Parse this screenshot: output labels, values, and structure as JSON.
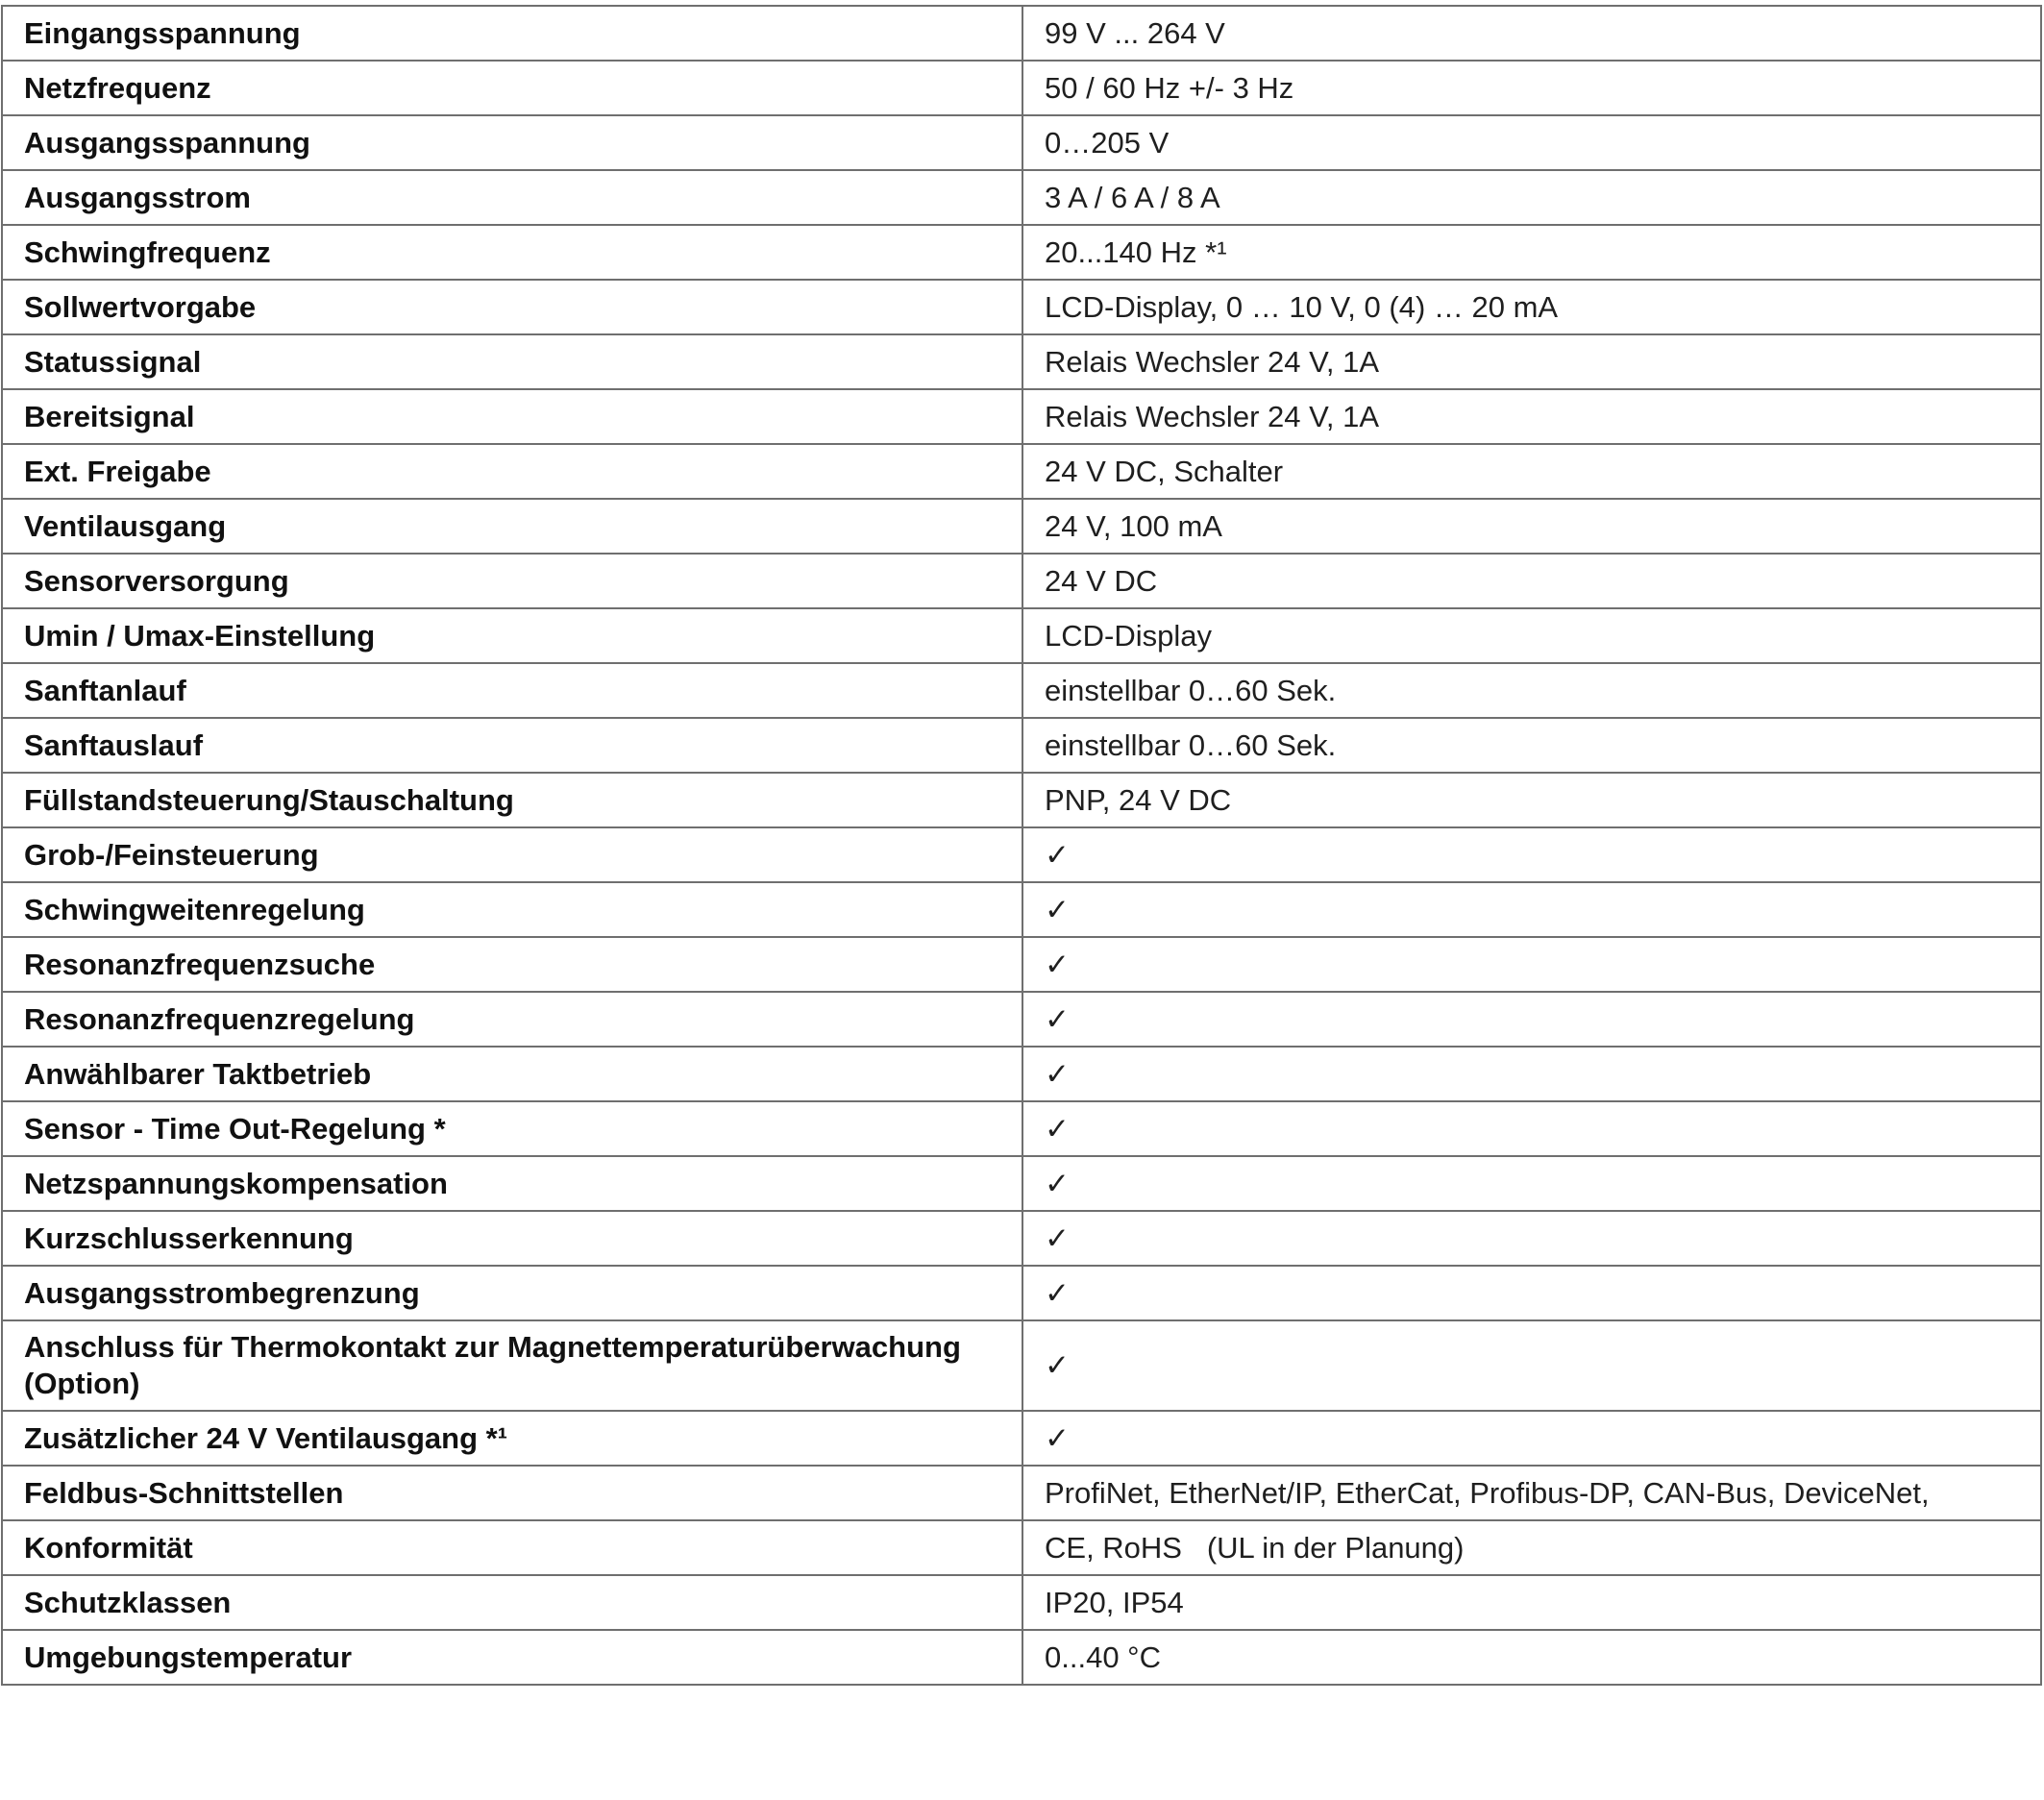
{
  "rows": [
    {
      "label": "Eingangsspannung",
      "value": "99 V ... 264 V"
    },
    {
      "label": "Netzfrequenz",
      "value": "50 / 60 Hz +/- 3 Hz"
    },
    {
      "label": "Ausgangsspannung",
      "value": "0…205 V"
    },
    {
      "label": "Ausgangsstrom",
      "value": "3 A / 6 A / 8 A"
    },
    {
      "label": "Schwingfrequenz",
      "value": "20...140 Hz *¹"
    },
    {
      "label": "Sollwertvorgabe",
      "value": "LCD-Display, 0 … 10 V, 0 (4) … 20 mA"
    },
    {
      "label": "Statussignal",
      "value": "Relais Wechsler 24 V, 1A"
    },
    {
      "label": "Bereitsignal",
      "value": "Relais Wechsler 24 V, 1A"
    },
    {
      "label": "Ext. Freigabe",
      "value": "24 V DC, Schalter"
    },
    {
      "label": "Ventilausgang",
      "value": "24 V, 100 mA"
    },
    {
      "label": "Sensorversorgung",
      "value": "24 V DC"
    },
    {
      "label": "Umin / Umax-Einstellung",
      "value": "LCD-Display"
    },
    {
      "label": "Sanftanlauf",
      "value": "einstellbar 0…60 Sek."
    },
    {
      "label": "Sanftauslauf",
      "value": "einstellbar 0…60 Sek."
    },
    {
      "label": "Füllstandsteuerung/Stauschaltung",
      "value": "PNP, 24 V DC"
    },
    {
      "label": "Grob-/Feinsteuerung",
      "value": "✓"
    },
    {
      "label": "Schwingweitenregelung",
      "value": "✓"
    },
    {
      "label": "Resonanzfrequenzsuche",
      "value": "✓"
    },
    {
      "label": "Resonanzfrequenzregelung",
      "value": "✓"
    },
    {
      "label": "Anwählbarer Taktbetrieb",
      "value": "✓"
    },
    {
      "label": "Sensor - Time Out-Regelung *",
      "value": "✓"
    },
    {
      "label": "Netzspannungskompensation",
      "value": "✓"
    },
    {
      "label": "Kurzschlusserkennung",
      "value": "✓"
    },
    {
      "label": "Ausgangsstrombegrenzung",
      "value": "✓"
    },
    {
      "label": "Anschluss für Thermokontakt zur Magnettemperaturüberwachung (Option)",
      "value": "✓"
    },
    {
      "label": "Zusätzlicher 24 V Ventilausgang *¹",
      "value": "✓"
    },
    {
      "label": "Feldbus-Schnittstellen",
      "value": "ProfiNet, EtherNet/IP, EtherCat, Profibus-DP, CAN-Bus, DeviceNet,"
    },
    {
      "label": "Konformität",
      "value": "CE, RoHS   (UL in der Planung)"
    },
    {
      "label": "Schutzklassen",
      "value": "IP20, IP54"
    },
    {
      "label": "Umgebungstemperatur",
      "value": "0...40 °C"
    }
  ]
}
